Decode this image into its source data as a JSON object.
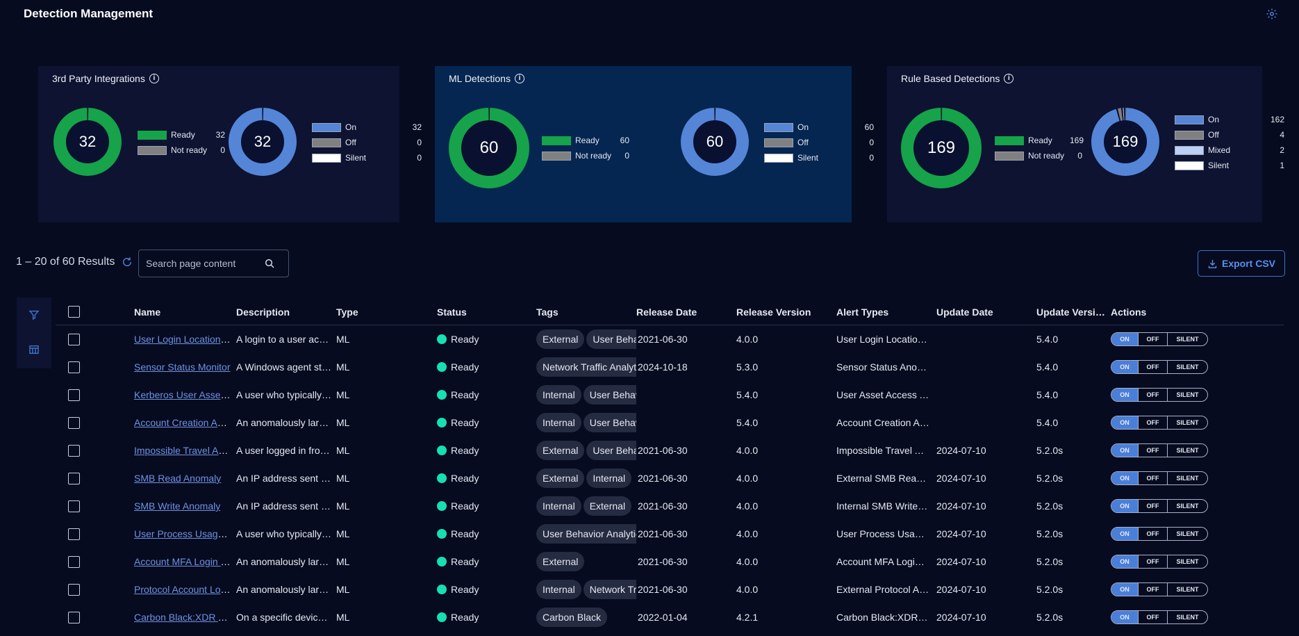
{
  "app": {
    "title": "Detection Management",
    "settings_icon": "gear-icon"
  },
  "colors": {
    "ready": "#16a34a",
    "not_ready": "#808080",
    "on": "#5585d6",
    "off": "#808080",
    "silent": "#ffffff",
    "mixed": "#bcd0f5",
    "track": "#0a1030"
  },
  "cards": [
    {
      "title": "3rd Party Integrations",
      "readiness": {
        "center": "32",
        "ready": 32,
        "not_ready": 0
      },
      "state": {
        "center": "32",
        "on": 32,
        "off": 0,
        "silent": 0
      },
      "legend_ready": [
        {
          "label": "Ready",
          "value": "32"
        },
        {
          "label": "Not ready",
          "value": "0"
        }
      ],
      "legend_state": [
        {
          "label": "On",
          "value": "32"
        },
        {
          "label": "Off",
          "value": "0"
        },
        {
          "label": "Silent",
          "value": "0"
        }
      ]
    },
    {
      "title": "ML Detections",
      "readiness": {
        "center": "60",
        "ready": 60,
        "not_ready": 0
      },
      "state": {
        "center": "60",
        "on": 60,
        "off": 0,
        "silent": 0
      },
      "legend_ready": [
        {
          "label": "Ready",
          "value": "60"
        },
        {
          "label": "Not ready",
          "value": "0"
        }
      ],
      "legend_state": [
        {
          "label": "On",
          "value": "60"
        },
        {
          "label": "Off",
          "value": "0"
        },
        {
          "label": "Silent",
          "value": "0"
        }
      ]
    },
    {
      "title": "Rule Based Detections",
      "readiness": {
        "center": "169",
        "ready": 169,
        "not_ready": 0
      },
      "state": {
        "center": "169",
        "on": 162,
        "off": 4,
        "mixed": 2,
        "silent": 1
      },
      "legend_ready": [
        {
          "label": "Ready",
          "value": "169"
        },
        {
          "label": "Not ready",
          "value": "0"
        }
      ],
      "legend_state": [
        {
          "label": "On",
          "value": "162"
        },
        {
          "label": "Off",
          "value": "4"
        },
        {
          "label": "Mixed",
          "value": "2"
        },
        {
          "label": "Silent",
          "value": "1"
        }
      ]
    }
  ],
  "toolbar": {
    "results": "1 – 20 of 60 Results",
    "search_placeholder": "Search page content",
    "search_value": "",
    "export_label": "Export CSV"
  },
  "table": {
    "headers": {
      "name": "Name",
      "description": "Description",
      "type": "Type",
      "status": "Status",
      "tags": "Tags",
      "release_date": "Release Date",
      "release_version": "Release Version",
      "alert_types": "Alert Types",
      "update_date": "Update Date",
      "update_version": "Update Version",
      "actions": "Actions"
    },
    "toggle": {
      "on": "ON",
      "off": "OFF",
      "silent": "SILENT"
    },
    "rows": [
      {
        "name": "User Login Location Anomaly",
        "description": "A login to a user account from an unusual location",
        "type": "ML",
        "status": "Ready",
        "tags": [
          "External",
          "User Behavior Analytics"
        ],
        "release_date": "2021-06-30",
        "release_version": "4.0.0",
        "alert_types": "User Login Location Anomaly",
        "update_date": "",
        "update_version": "5.4.0"
      },
      {
        "name": "Sensor Status Monitor",
        "description": "A Windows agent stopped reporting",
        "type": "ML",
        "status": "Ready",
        "tags": [
          "Network Traffic Analytics"
        ],
        "release_date": "2024-10-18",
        "release_version": "5.3.0",
        "alert_types": "Sensor Status Anomaly",
        "update_date": "",
        "update_version": "5.4.0"
      },
      {
        "name": "Kerberos User Asset Access",
        "description": "A user who typically accesses few assets",
        "type": "ML",
        "status": "Ready",
        "tags": [
          "Internal",
          "User Behavior Analytics"
        ],
        "release_date": "",
        "release_version": "5.4.0",
        "alert_types": "User Asset Access Anomaly",
        "update_date": "",
        "update_version": "5.4.0"
      },
      {
        "name": "Account Creation Anomaly",
        "description": "An anomalously large number of accounts",
        "type": "ML",
        "status": "Ready",
        "tags": [
          "Internal",
          "User Behavior Analytics"
        ],
        "release_date": "",
        "release_version": "5.4.0",
        "alert_types": "Account Creation Anomaly",
        "update_date": "",
        "update_version": "5.4.0"
      },
      {
        "name": "Impossible Travel Anomaly",
        "description": "A user logged in from two distant locations",
        "type": "ML",
        "status": "Ready",
        "tags": [
          "External",
          "User Behavior Analytics"
        ],
        "release_date": "2021-06-30",
        "release_version": "4.0.0",
        "alert_types": "Impossible Travel Anomaly",
        "update_date": "2024-07-10",
        "update_version": "5.2.0s"
      },
      {
        "name": "SMB Read Anomaly",
        "description": "An IP address sent an unusual amount of data",
        "type": "ML",
        "status": "Ready",
        "tags": [
          "External",
          "Internal"
        ],
        "release_date": "2021-06-30",
        "release_version": "4.0.0",
        "alert_types": "External SMB Read Anomaly",
        "update_date": "2024-07-10",
        "update_version": "5.2.0s"
      },
      {
        "name": "SMB Write Anomaly",
        "description": "An IP address sent an unusual amount of data",
        "type": "ML",
        "status": "Ready",
        "tags": [
          "Internal",
          "External"
        ],
        "release_date": "2021-06-30",
        "release_version": "4.0.0",
        "alert_types": "Internal SMB Write Anomaly",
        "update_date": "2024-07-10",
        "update_version": "5.2.0s"
      },
      {
        "name": "User Process Usage Anomaly",
        "description": "A user who typically runs few processes",
        "type": "ML",
        "status": "Ready",
        "tags": [
          "User Behavior Analytics"
        ],
        "release_date": "2021-06-30",
        "release_version": "4.0.0",
        "alert_types": "User Process Usage Anomaly",
        "update_date": "2024-07-10",
        "update_version": "5.2.0s"
      },
      {
        "name": "Account MFA Login Failures",
        "description": "An anomalously large number of MFA failures",
        "type": "ML",
        "status": "Ready",
        "tags": [
          "External"
        ],
        "release_date": "2021-06-30",
        "release_version": "4.0.0",
        "alert_types": "Account MFA Login Failure Anomaly",
        "update_date": "2024-07-10",
        "update_version": "5.2.0s"
      },
      {
        "name": "Protocol Account Login Anomaly",
        "description": "An anomalously large number of logins",
        "type": "ML",
        "status": "Ready",
        "tags": [
          "Internal",
          "Network Traffic Analytics"
        ],
        "release_date": "2021-06-30",
        "release_version": "4.0.0",
        "alert_types": "External Protocol Account Login Anomaly",
        "update_date": "2024-07-10",
        "update_version": "5.2.0s"
      },
      {
        "name": "Carbon Black:XDR Anomaly",
        "description": "On a specific device, an unusual process",
        "type": "ML",
        "status": "Ready",
        "tags": [
          "Carbon Black"
        ],
        "release_date": "2022-01-04",
        "release_version": "4.2.1",
        "alert_types": "Carbon Black:XDR Anomaly",
        "update_date": "2024-07-10",
        "update_version": "5.2.0s"
      }
    ]
  }
}
